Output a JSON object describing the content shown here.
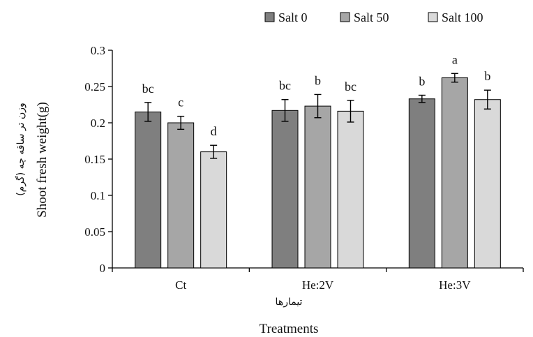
{
  "chart_data": {
    "type": "bar",
    "categories": [
      "Ct",
      "He:2V",
      "He:3V"
    ],
    "series": [
      {
        "name": "Salt 0",
        "color": "#7f7f7f",
        "values": [
          0.215,
          0.217,
          0.233
        ],
        "errors": [
          0.013,
          0.015,
          0.005
        ],
        "labels": [
          "bc",
          "bc",
          "b"
        ]
      },
      {
        "name": "Salt 50",
        "color": "#a6a6a6",
        "values": [
          0.2,
          0.223,
          0.262
        ],
        "errors": [
          0.009,
          0.016,
          0.006
        ],
        "labels": [
          "c",
          "b",
          "a"
        ]
      },
      {
        "name": "Salt 100",
        "color": "#d9d9d9",
        "values": [
          0.16,
          0.216,
          0.232
        ],
        "errors": [
          0.009,
          0.015,
          0.013
        ],
        "labels": [
          "d",
          "bc",
          "b"
        ]
      }
    ],
    "ylim": [
      0,
      0.3
    ],
    "yticks": [
      "0",
      "0.05",
      "0.1",
      "0.15",
      "0.2",
      "0.25",
      "0.3"
    ],
    "ylabel": "Shoot  fresh weight(g)",
    "ylabel_fa": "وزن تر ساقه چه (گرم)",
    "xlabel": "Treatments",
    "xlabel_fa": "تیمارها",
    "legend_position": "top-right",
    "grid": false
  }
}
